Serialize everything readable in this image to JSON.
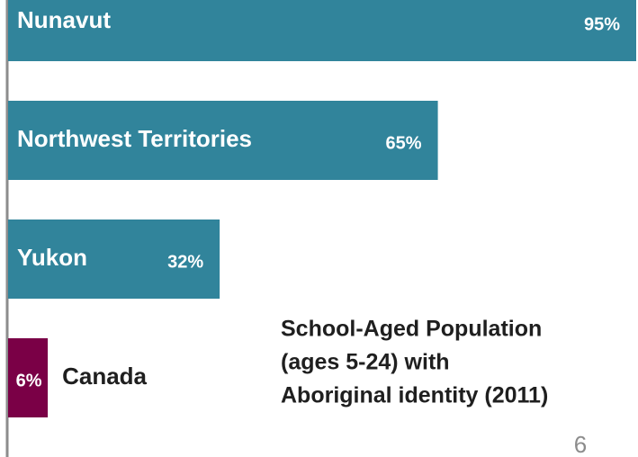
{
  "chart_data": {
    "type": "barh",
    "categories": [
      "Nunavut",
      "Northwest Territories",
      "Yukon",
      "Canada"
    ],
    "values": [
      95,
      65,
      32,
      6
    ],
    "value_labels": [
      "95%",
      "65%",
      "32%",
      "6%"
    ],
    "colors": [
      "#31849b",
      "#31849b",
      "#31849b",
      "#7a0046"
    ],
    "xlim": [
      0,
      95
    ],
    "annotation": [
      "School-Aged Population",
      "(ages 5-24) with",
      "Aboriginal identity (2011)"
    ]
  },
  "page_number": "6"
}
